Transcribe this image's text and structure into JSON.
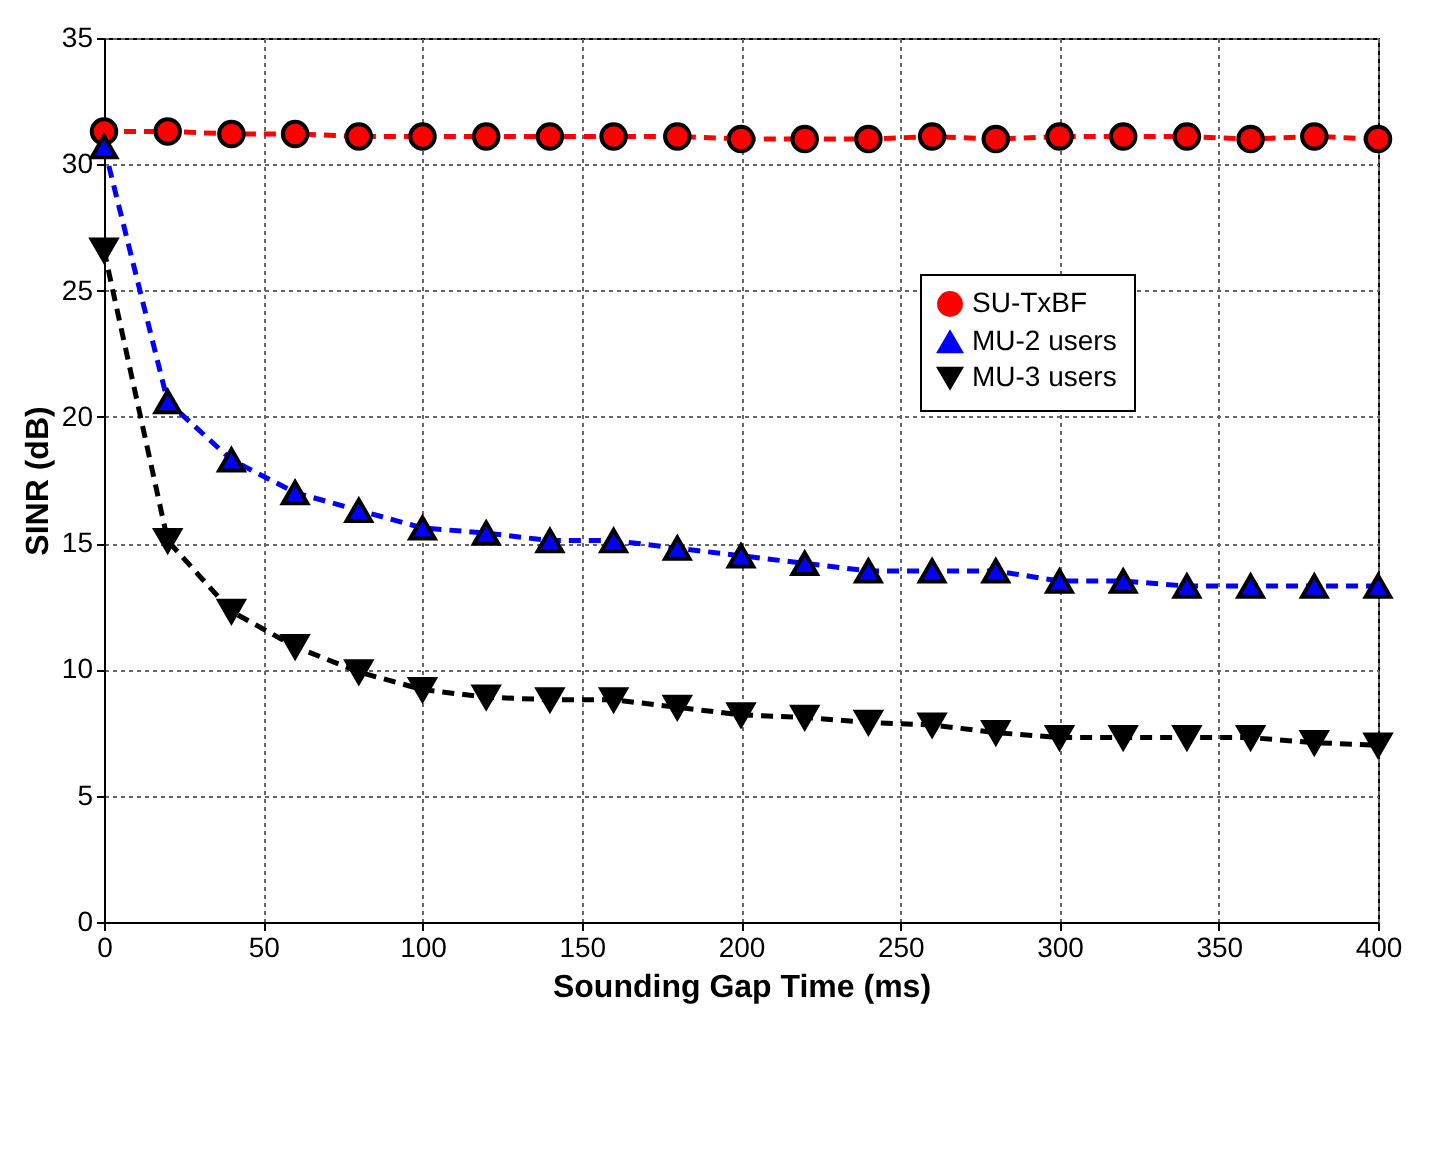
{
  "chart_data": {
    "type": "line",
    "xlabel": "Sounding Gap Time (ms)",
    "ylabel": "SINR (dB)",
    "x": [
      0,
      20,
      40,
      60,
      80,
      100,
      120,
      140,
      160,
      180,
      200,
      220,
      240,
      260,
      280,
      300,
      320,
      340,
      360,
      380,
      400
    ],
    "series": [
      {
        "name": "SU-TxBF",
        "color": "#ff0000",
        "marker": "circle",
        "values": [
          31.3,
          31.3,
          31.2,
          31.2,
          31.1,
          31.1,
          31.1,
          31.1,
          31.1,
          31.1,
          31.0,
          31.0,
          31.0,
          31.1,
          31.0,
          31.1,
          31.1,
          31.1,
          31.0,
          31.1,
          31.0
        ]
      },
      {
        "name": "MU-2 users",
        "color": "#0000ff",
        "marker": "triangle",
        "values": [
          30.7,
          20.6,
          18.3,
          17.0,
          16.3,
          15.6,
          15.4,
          15.1,
          15.1,
          14.8,
          14.5,
          14.2,
          13.9,
          13.9,
          13.9,
          13.5,
          13.5,
          13.3,
          13.3,
          13.3,
          13.3
        ]
      },
      {
        "name": "MU-3 users",
        "color": "#000000",
        "marker": "triangle-down",
        "values": [
          26.6,
          15.1,
          12.3,
          10.9,
          9.9,
          9.2,
          8.9,
          8.8,
          8.8,
          8.5,
          8.2,
          8.1,
          7.9,
          7.8,
          7.5,
          7.3,
          7.3,
          7.3,
          7.3,
          7.1,
          7.0
        ]
      }
    ],
    "xlim": [
      0,
      400
    ],
    "xticks": [
      0,
      50,
      100,
      150,
      200,
      250,
      300,
      350,
      400
    ],
    "ylim": [
      0,
      35
    ],
    "yticks": [
      0,
      5,
      10,
      15,
      20,
      25,
      30,
      35
    ],
    "grid": true,
    "legend": "right",
    "line_style": "dashed"
  }
}
